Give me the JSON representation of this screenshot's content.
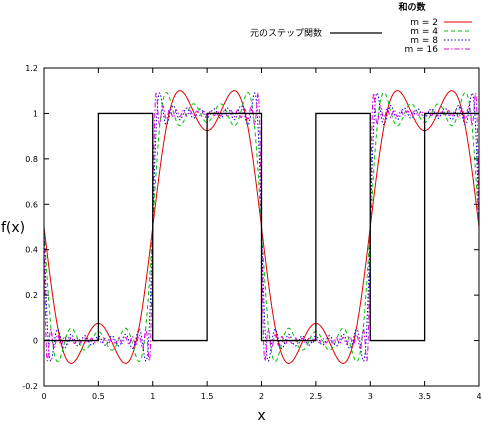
{
  "chart_data": {
    "type": "line",
    "xlabel": "x",
    "ylabel": "f(x)",
    "xlim": [
      0,
      4
    ],
    "ylim": [
      -0.2,
      1.2
    ],
    "x_ticks": [
      "0",
      "0.5",
      "1",
      "1.5",
      "2",
      "2.5",
      "3",
      "3.5",
      "4"
    ],
    "y_ticks": [
      "-0.2",
      "0",
      "0.2",
      "0.4",
      "0.6",
      "0.8",
      "1",
      "1.2"
    ],
    "grid": false,
    "step_legend": "元のステップ関数",
    "legend_title": "和の数",
    "legend_position": "top-right",
    "step_function": {
      "name": "元のステップ関数",
      "color": "#000000",
      "x": [
        0,
        0.5,
        0.5,
        1,
        1,
        1.5,
        1.5,
        2,
        2,
        2.5,
        2.5,
        3,
        3,
        3.5,
        3.5,
        4
      ],
      "y": [
        0,
        0,
        1,
        1,
        0,
        0,
        1,
        1,
        0,
        0,
        1,
        1,
        0,
        0,
        1,
        1
      ]
    },
    "series": [
      {
        "name": "m = 2",
        "terms": 2,
        "color": "#e00000",
        "dash": ""
      },
      {
        "name": "m = 4",
        "terms": 4,
        "color": "#00c000",
        "dash": "4,3"
      },
      {
        "name": "m = 8",
        "terms": 8,
        "color": "#0000cc",
        "dash": "1.5,2"
      },
      {
        "name": "m = 16",
        "terms": 16,
        "color": "#e000e0",
        "dash": "5,2,1.5,2"
      }
    ]
  }
}
